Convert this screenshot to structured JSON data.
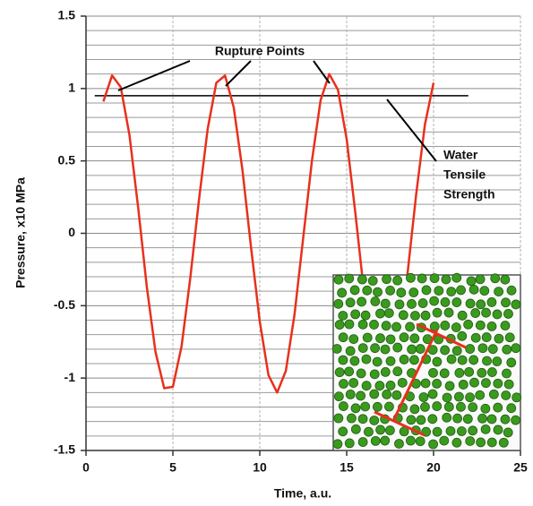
{
  "chart_data": {
    "type": "line",
    "x_label": "Time, a.u.",
    "y_label": "Pressure, x10 MPa",
    "x": [
      1,
      1.5,
      2,
      2.5,
      3,
      3.5,
      4,
      4.5,
      5,
      5.5,
      6,
      6.5,
      7,
      7.5,
      8,
      8.5,
      9,
      9.5,
      10,
      10.5,
      11,
      11.5,
      12,
      12.5,
      13,
      13.5,
      14,
      14.5,
      15,
      15.5,
      16,
      16.5,
      17,
      17.5,
      18,
      18.5,
      19,
      19.5,
      20
    ],
    "series": [
      {
        "color": "#e8301c",
        "values": [
          0.91,
          1.09,
          1.01,
          0.68,
          0.18,
          -0.37,
          -0.82,
          -1.07,
          -1.06,
          -0.78,
          -0.31,
          0.23,
          0.72,
          1.04,
          1.09,
          0.87,
          0.44,
          -0.1,
          -0.61,
          -0.98,
          -1.1,
          -0.95,
          -0.56,
          -0.03,
          0.5,
          0.92,
          1.1,
          0.99,
          0.65,
          0.14,
          -0.41,
          -0.85,
          -1.08,
          -1.04,
          -0.75,
          -0.28,
          0.27,
          0.75,
          1.04
        ]
      }
    ],
    "xlim": [
      0,
      25
    ],
    "xticks": [
      0,
      5,
      10,
      15,
      20,
      25
    ],
    "ylim": [
      -1.5,
      1.5
    ],
    "yticks": [
      1.5,
      1,
      0.5,
      0,
      -0.5,
      -1,
      -1.5
    ],
    "grid": true,
    "minor_per_major": 5,
    "reference_line": {
      "y": 0.95,
      "x": [
        0.5,
        22
      ],
      "color": "#000000"
    },
    "annotations": [
      {
        "text": "Rupture Points"
      },
      {
        "lines": [
          "Water",
          "Tensile",
          "Strength"
        ]
      }
    ]
  }
}
